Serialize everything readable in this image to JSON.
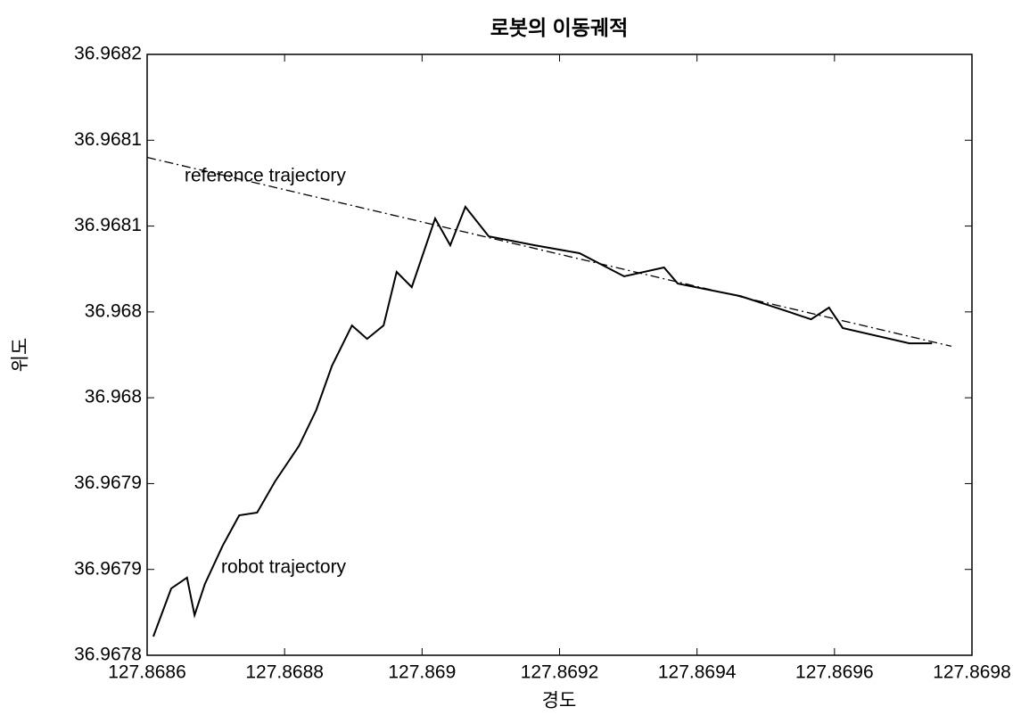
{
  "chart_data": {
    "type": "line",
    "title": "로봇의 이동궤적",
    "x_label": "경도",
    "y_label": "위도",
    "annotations": [
      "reference trajectory",
      "robot trajectory"
    ],
    "xlim": [
      127.8686,
      127.8698
    ],
    "xticks": [
      127.8686,
      127.8688,
      127.869,
      127.8692,
      127.8694,
      127.8696,
      127.8698
    ],
    "ylim": [
      36.9678,
      36.96815
    ],
    "yticks": [
      {
        "value": 36.9678,
        "label": "36.9678"
      },
      {
        "value": 36.96785,
        "label": "36.9679"
      },
      {
        "value": 36.9679,
        "label": "36.9679"
      },
      {
        "value": 36.96795,
        "label": "36.968"
      },
      {
        "value": 36.968,
        "label": "36.968"
      },
      {
        "value": 36.96805,
        "label": "36.9681"
      },
      {
        "value": 36.9681,
        "label": "36.9681"
      },
      {
        "value": 36.96815,
        "label": "36.9682"
      }
    ],
    "series": [
      {
        "color": "#000000",
        "dash": true,
        "x": [
          127.8686,
          127.86977
        ],
        "values": [
          36.96809,
          36.96798
        ]
      },
      {
        "color": "#000000",
        "dash": false,
        "x": [
          127.868609,
          127.868635,
          127.868658,
          127.868669,
          127.868684,
          127.86871,
          127.868734,
          127.86876,
          127.868786,
          127.868821,
          127.868846,
          127.868869,
          127.868898,
          127.86892,
          127.868944,
          127.868963,
          127.868985,
          127.869019,
          127.869041,
          127.869063,
          127.869097,
          127.869164,
          127.869229,
          127.869294,
          127.869352,
          127.869372,
          127.869463,
          127.869515,
          127.869566,
          127.869592,
          127.869612,
          127.869709,
          127.869742
        ],
        "values": [
          36.9678109,
          36.9678389,
          36.9678452,
          36.9678234,
          36.9678415,
          36.9678639,
          36.9678815,
          36.9678831,
          36.9679012,
          36.967922,
          36.9679428,
          36.9679687,
          36.9679921,
          36.9679843,
          36.9679921,
          36.9680233,
          36.9680144,
          36.9680544,
          36.9680388,
          36.9680612,
          36.968044,
          36.9680388,
          36.9680342,
          36.9680207,
          36.9680259,
          36.9680165,
          36.9680092,
          36.9680025,
          36.9679957,
          36.9680025,
          36.9679906,
          36.9679817,
          36.9679817
        ]
      }
    ]
  }
}
